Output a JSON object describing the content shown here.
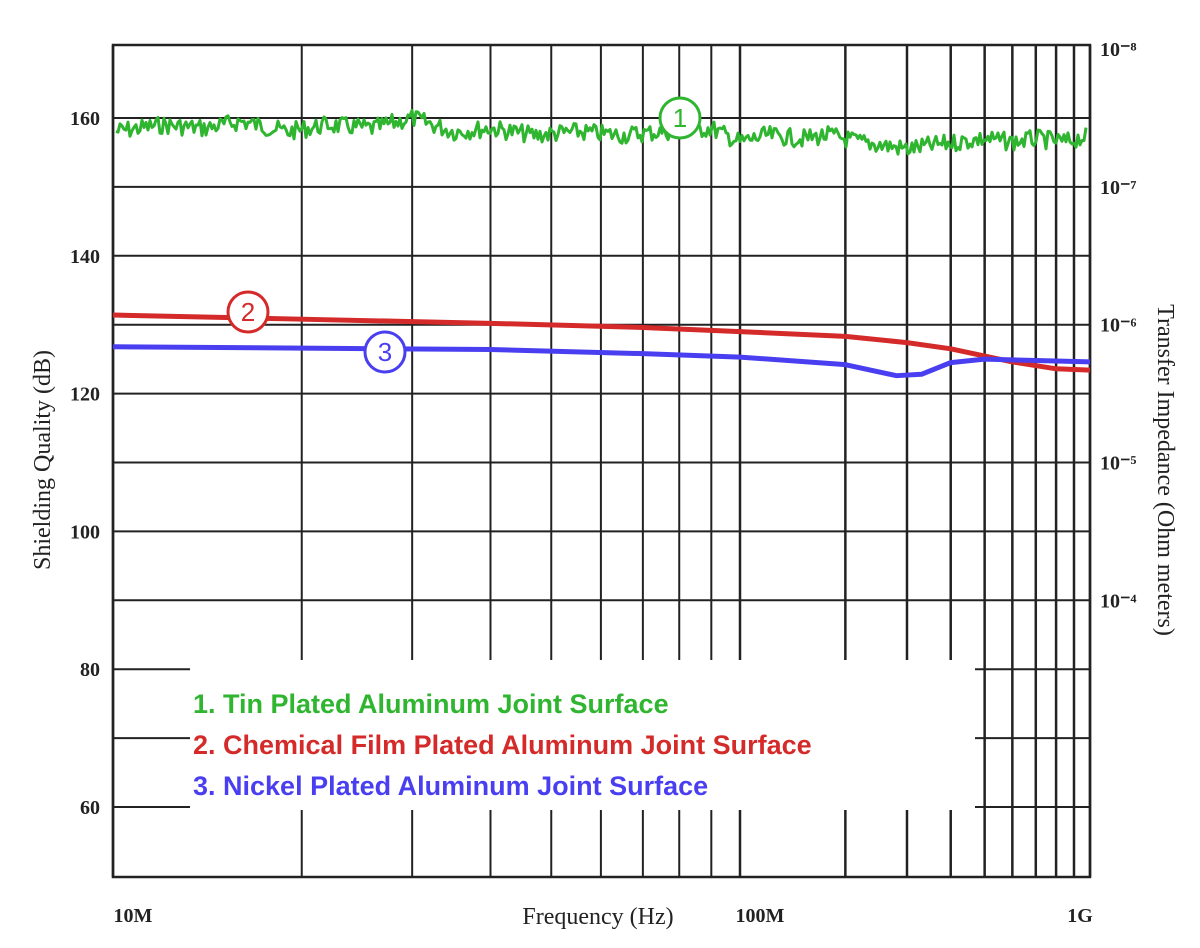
{
  "chart_data": {
    "type": "line",
    "title": "",
    "xlabel": "Frequency (Hz)",
    "ylabel": "Shielding Quality (dB)",
    "y2label": "Transfer Impedance (Ohm meters)",
    "xscale": "log",
    "xlim": [
      10000000,
      1000000000
    ],
    "ylim": [
      50,
      170
    ],
    "x_tick_labels": [
      {
        "value": 10000000,
        "label": "10M"
      },
      {
        "value": 100000000,
        "label": "100M"
      },
      {
        "value": 1000000000,
        "label": "1G"
      }
    ],
    "y_ticks": [
      160,
      140,
      120,
      100,
      80,
      60
    ],
    "y2_tick_labels": [
      {
        "at_db": 170,
        "label": "10⁻⁸"
      },
      {
        "at_db": 150,
        "label": "10⁻⁷"
      },
      {
        "at_db": 130,
        "label": "10⁻⁶"
      },
      {
        "at_db": 110,
        "label": "10⁻⁵"
      },
      {
        "at_db": 90,
        "label": "10⁻⁴"
      }
    ],
    "grid": true,
    "legend_placement": "bottom-left",
    "series": [
      {
        "name": "1. Tin Plated Aluminum Joint Surface",
        "marker": "1",
        "color": "#2fb52f",
        "x": [
          10000000,
          12000000,
          14000000,
          16000000,
          19000000,
          22000000,
          26000000,
          30000000,
          35000000,
          40000000,
          47000000,
          55000000,
          65000000,
          75000000,
          90000000,
          100000000,
          120000000,
          150000000,
          180000000,
          220000000,
          260000000,
          300000000,
          350000000,
          420000000,
          500000000,
          600000000,
          700000000,
          850000000,
          1000000000
        ],
        "y": [
          158,
          159,
          158.5,
          159.5,
          158,
          159,
          158.5,
          160,
          158,
          158.5,
          157.5,
          158,
          157.5,
          158,
          158.5,
          156.5,
          157.5,
          157,
          157.5,
          156.5,
          156,
          155.5,
          156,
          156.5,
          157,
          156.5,
          157,
          156.5,
          157.5
        ]
      },
      {
        "name": "2. Chemical Film Plated Aluminum Joint Surface",
        "marker": "2",
        "color": "#d42a2a",
        "x": [
          10000000,
          20000000,
          40000000,
          70000000,
          100000000,
          200000000,
          300000000,
          400000000,
          600000000,
          800000000,
          1000000000
        ],
        "y": [
          131.4,
          130.8,
          130.2,
          129.6,
          129,
          128.3,
          127.4,
          126.5,
          124.6,
          123.6,
          123.4
        ]
      },
      {
        "name": "3. Nickel Plated Aluminum Joint Surface",
        "marker": "3",
        "color": "#4a3ff0",
        "x": [
          10000000,
          20000000,
          40000000,
          70000000,
          100000000,
          200000000,
          280000000,
          330000000,
          400000000,
          500000000,
          700000000,
          1000000000
        ],
        "y": [
          126.8,
          126.6,
          126.4,
          125.8,
          125.3,
          124.2,
          122.6,
          122.8,
          124.5,
          125,
          124.8,
          124.6
        ]
      }
    ]
  }
}
